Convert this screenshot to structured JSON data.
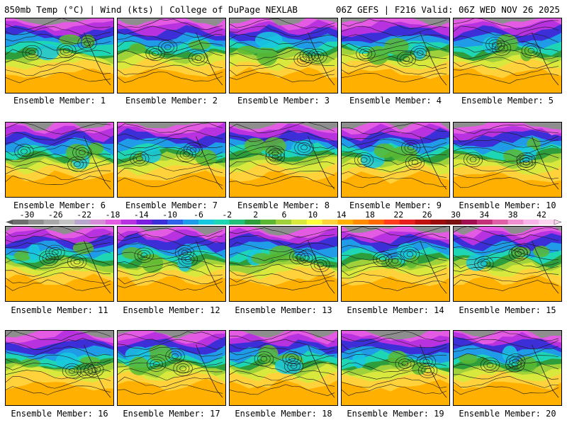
{
  "header": {
    "left": "850mb Temp (°C) | Wind (kts) | College of DuPage NEXLAB",
    "right": "06Z GEFS | F216 Valid: 06Z WED NOV 26 2025"
  },
  "member_label_prefix": "Ensemble Member: ",
  "members": [
    "1",
    "2",
    "3",
    "4",
    "5",
    "6",
    "7",
    "8",
    "9",
    "10",
    "11",
    "12",
    "13",
    "14",
    "15",
    "16",
    "17",
    "18",
    "19",
    "20"
  ],
  "colorbar": {
    "tick_labels": [
      "-30",
      "-26",
      "-22",
      "-18",
      "-14",
      "-10",
      "-6",
      "-2",
      "2",
      "6",
      "10",
      "14",
      "18",
      "22",
      "26",
      "30",
      "34",
      "38",
      "42"
    ],
    "colors": [
      "#6e6e6e",
      "#8e8e8e",
      "#a8a8a8",
      "#c4c4c4",
      "#b9a6cf",
      "#d68cd6",
      "#e35be3",
      "#b832e0",
      "#7a1fe0",
      "#3c2fd8",
      "#2f62e8",
      "#1f9be8",
      "#18c8e0",
      "#1fd6b4",
      "#20c078",
      "#2e9e3c",
      "#5cb832",
      "#9ed13a",
      "#d9e83c",
      "#ffff3c",
      "#ffd23c",
      "#ffb000",
      "#ff8c00",
      "#ff6a00",
      "#ff3c1e",
      "#e81e1e",
      "#c01010",
      "#9a0c0c",
      "#7a1010",
      "#a01050",
      "#c4307a",
      "#e060a8",
      "#f08cd0",
      "#f8b4e8",
      "#fcd4f2"
    ]
  }
}
